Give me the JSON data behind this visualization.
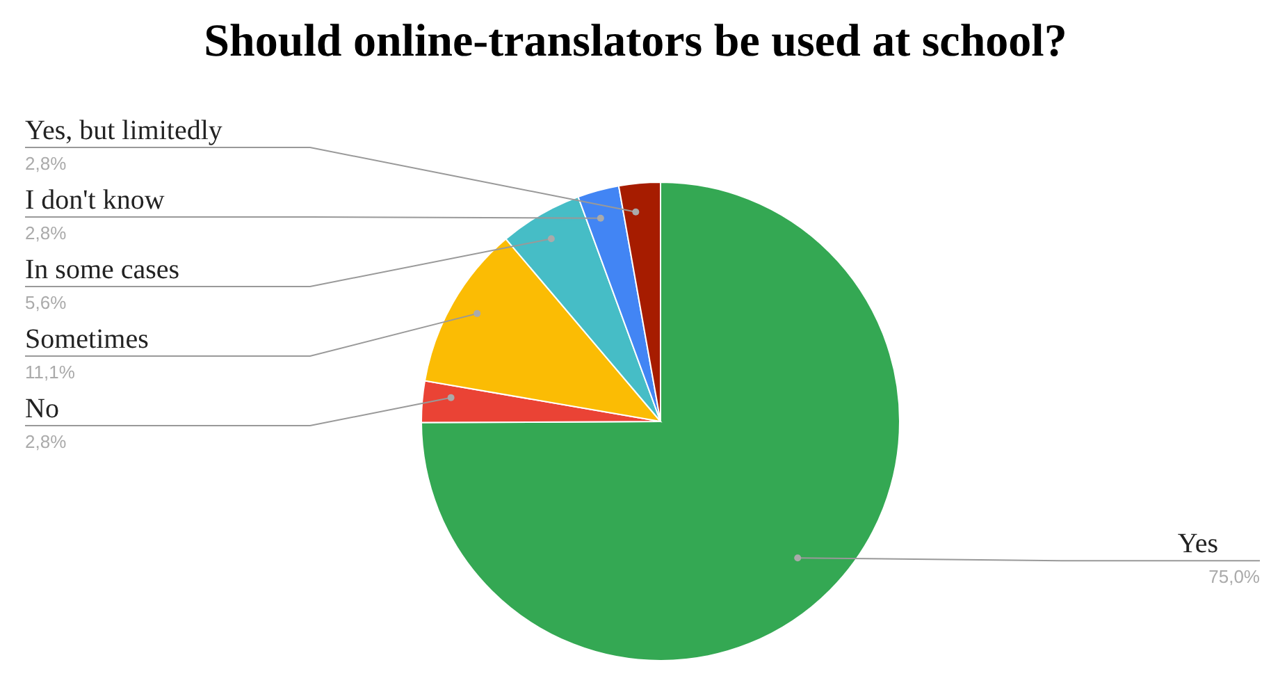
{
  "chart_data": {
    "type": "pie",
    "title": "Should online-translators be used at school?",
    "categories": [
      "Yes",
      "No",
      "Sometimes",
      "In some cases",
      "I don't know",
      "Yes, but limitedly"
    ],
    "values": [
      75.0,
      2.8,
      11.1,
      5.6,
      2.8,
      2.8
    ],
    "colors": [
      "#34a853",
      "#ea4335",
      "#fbbc04",
      "#46bdc6",
      "#4285f4",
      "#a61c00"
    ],
    "value_labels": [
      "75,0%",
      "2,8%",
      "11,1%",
      "5,6%",
      "2,8%",
      "2,8%"
    ]
  }
}
